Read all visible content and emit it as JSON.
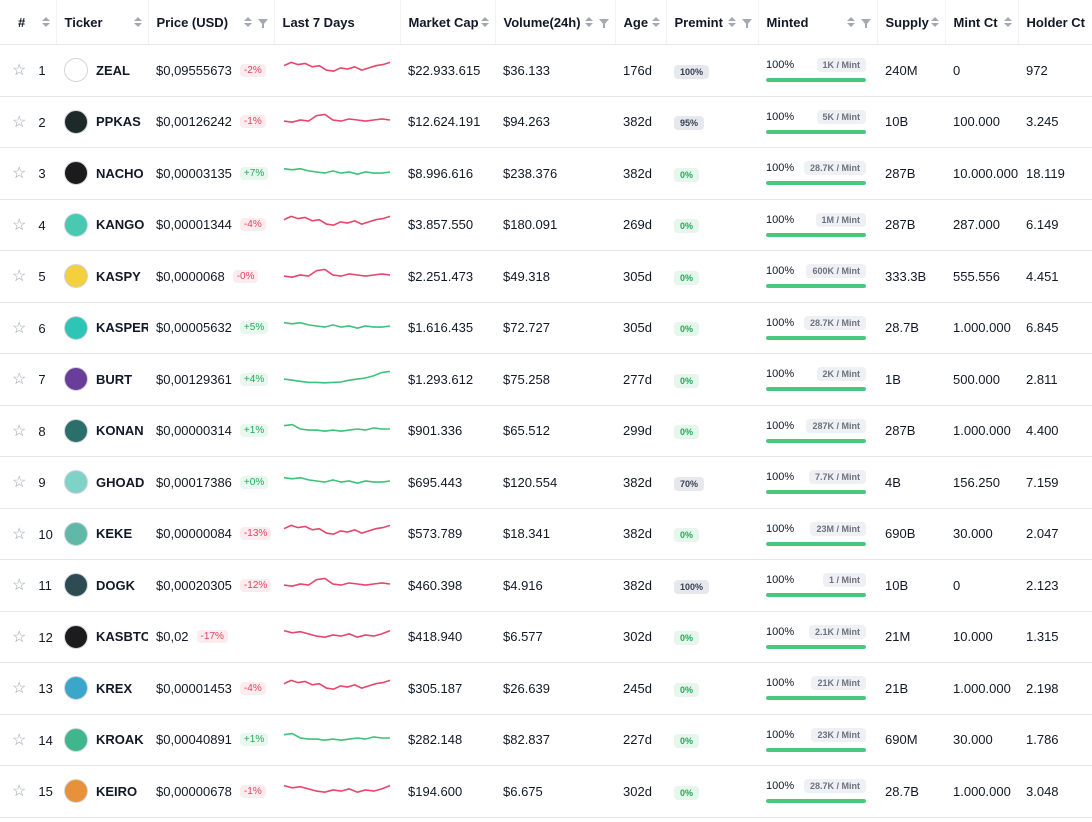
{
  "columns": {
    "rank": "#",
    "ticker": "Ticker",
    "price": "Price (USD)",
    "chart": "Last 7 Days",
    "mcap": "Market Cap",
    "volume": "Volume(24h)",
    "age": "Age",
    "premint": "Premint",
    "minted": "Minted",
    "supply": "Supply",
    "mintct": "Mint Ct",
    "holders": "Holder Ct"
  },
  "colors": {
    "positive": "#3cc27a",
    "negative": "#e6466a",
    "minted_fill": "#49c77d"
  },
  "rows": [
    {
      "rank": "1",
      "ticker": "ZEAL",
      "price": "$0,09555673",
      "change": "-2%",
      "dir": "neg",
      "mcap": "$22.933.615",
      "volume": "$36.133",
      "age": "176d",
      "premint": "100%",
      "minted_pct": "100%",
      "per_mint": "1K / Mint",
      "supply": "240M",
      "mintct": "0",
      "holders": "972",
      "logo_color": "#ffffff",
      "icon": "zeal-logo-icon"
    },
    {
      "rank": "2",
      "ticker": "PPKAS",
      "price": "$0,00126242",
      "change": "-1%",
      "dir": "neg",
      "mcap": "$12.624.191",
      "volume": "$94.263",
      "age": "382d",
      "premint": "95%",
      "minted_pct": "100%",
      "per_mint": "5K / Mint",
      "supply": "10B",
      "mintct": "100.000",
      "holders": "3.245",
      "logo_color": "#1e2a2a",
      "icon": "ppkas-logo-icon"
    },
    {
      "rank": "3",
      "ticker": "NACHO",
      "price": "$0,00003135",
      "change": "+7%",
      "dir": "pos",
      "mcap": "$8.996.616",
      "volume": "$238.376",
      "age": "382d",
      "premint": "0%",
      "minted_pct": "100%",
      "per_mint": "28.7K / Mint",
      "supply": "287B",
      "mintct": "10.000.000",
      "holders": "18.119",
      "logo_color": "#1b1b1b",
      "icon": "nacho-cat-icon"
    },
    {
      "rank": "4",
      "ticker": "KANGO",
      "price": "$0,00001344",
      "change": "-4%",
      "dir": "neg",
      "mcap": "$3.857.550",
      "volume": "$180.091",
      "age": "269d",
      "premint": "0%",
      "minted_pct": "100%",
      "per_mint": "1M / Mint",
      "supply": "287B",
      "mintct": "287.000",
      "holders": "6.149",
      "logo_color": "#48c9b0",
      "icon": "kango-logo-icon"
    },
    {
      "rank": "5",
      "ticker": "KASPY",
      "price": "$0,0000068",
      "change": "-0%",
      "dir": "neg",
      "mcap": "$2.251.473",
      "volume": "$49.318",
      "age": "305d",
      "premint": "0%",
      "minted_pct": "100%",
      "per_mint": "600K / Mint",
      "supply": "333.3B",
      "mintct": "555.556",
      "holders": "4.451",
      "logo_color": "#f4d03f",
      "icon": "kaspy-logo-icon"
    },
    {
      "rank": "6",
      "ticker": "KASPER",
      "price": "$0,00005632",
      "change": "+5%",
      "dir": "pos",
      "mcap": "$1.616.435",
      "volume": "$72.727",
      "age": "305d",
      "premint": "0%",
      "minted_pct": "100%",
      "per_mint": "28.7K / Mint",
      "supply": "28.7B",
      "mintct": "1.000.000",
      "holders": "6.845",
      "logo_color": "#2ec4b6",
      "icon": "kasper-ghost-icon"
    },
    {
      "rank": "7",
      "ticker": "BURT",
      "price": "$0,00129361",
      "change": "+4%",
      "dir": "pos",
      "mcap": "$1.293.612",
      "volume": "$75.258",
      "age": "277d",
      "premint": "0%",
      "minted_pct": "100%",
      "per_mint": "2K / Mint",
      "supply": "1B",
      "mintct": "500.000",
      "holders": "2.811",
      "logo_color": "#6a3d9a",
      "icon": "burt-logo-icon"
    },
    {
      "rank": "8",
      "ticker": "KONAN",
      "price": "$0,00000314",
      "change": "+1%",
      "dir": "pos",
      "mcap": "$901.336",
      "volume": "$65.512",
      "age": "299d",
      "premint": "0%",
      "minted_pct": "100%",
      "per_mint": "287K / Mint",
      "supply": "287B",
      "mintct": "1.000.000",
      "holders": "4.400",
      "logo_color": "#2b6f6a",
      "icon": "konan-logo-icon"
    },
    {
      "rank": "9",
      "ticker": "GHOAD",
      "price": "$0,00017386",
      "change": "+0%",
      "dir": "pos",
      "mcap": "$695.443",
      "volume": "$120.554",
      "age": "382d",
      "premint": "70%",
      "minted_pct": "100%",
      "per_mint": "7.7K / Mint",
      "supply": "4B",
      "mintct": "156.250",
      "holders": "7.159",
      "logo_color": "#7fd3c6",
      "icon": "ghoad-logo-icon"
    },
    {
      "rank": "10",
      "ticker": "KEKE",
      "price": "$0,00000084",
      "change": "-13%",
      "dir": "neg",
      "mcap": "$573.789",
      "volume": "$18.341",
      "age": "382d",
      "premint": "0%",
      "minted_pct": "100%",
      "per_mint": "23M / Mint",
      "supply": "690B",
      "mintct": "30.000",
      "holders": "2.047",
      "logo_color": "#5fb8a8",
      "icon": "keke-logo-icon"
    },
    {
      "rank": "11",
      "ticker": "DOGK",
      "price": "$0,00020305",
      "change": "-12%",
      "dir": "neg",
      "mcap": "$460.398",
      "volume": "$4.916",
      "age": "382d",
      "premint": "100%",
      "minted_pct": "100%",
      "per_mint": "1 / Mint",
      "supply": "10B",
      "mintct": "0",
      "holders": "2.123",
      "logo_color": "#2e4a52",
      "icon": "dogk-logo-icon"
    },
    {
      "rank": "12",
      "ticker": "KASBTC",
      "price": "$0,02",
      "change": "-17%",
      "dir": "neg",
      "mcap": "$418.940",
      "volume": "$6.577",
      "age": "302d",
      "premint": "0%",
      "minted_pct": "100%",
      "per_mint": "2.1K / Mint",
      "supply": "21M",
      "mintct": "10.000",
      "holders": "1.315",
      "logo_color": "#1c1c1c",
      "icon": "kasbtc-logo-icon"
    },
    {
      "rank": "13",
      "ticker": "KREX",
      "price": "$0,00001453",
      "change": "-4%",
      "dir": "neg",
      "mcap": "$305.187",
      "volume": "$26.639",
      "age": "245d",
      "premint": "0%",
      "minted_pct": "100%",
      "per_mint": "21K / Mint",
      "supply": "21B",
      "mintct": "1.000.000",
      "holders": "2.198",
      "logo_color": "#3aa6c9",
      "icon": "krex-logo-icon"
    },
    {
      "rank": "14",
      "ticker": "KROAK",
      "price": "$0,00040891",
      "change": "+1%",
      "dir": "pos",
      "mcap": "$282.148",
      "volume": "$82.837",
      "age": "227d",
      "premint": "0%",
      "minted_pct": "100%",
      "per_mint": "23K / Mint",
      "supply": "690M",
      "mintct": "30.000",
      "holders": "1.786",
      "logo_color": "#3fb68b",
      "icon": "kroak-frog-icon"
    },
    {
      "rank": "15",
      "ticker": "KEIRO",
      "price": "$0,00000678",
      "change": "-1%",
      "dir": "neg",
      "mcap": "$194.600",
      "volume": "$6.675",
      "age": "302d",
      "premint": "0%",
      "minted_pct": "100%",
      "per_mint": "28.7K / Mint",
      "supply": "28.7B",
      "mintct": "1.000.000",
      "holders": "3.048",
      "logo_color": "#e8913a",
      "icon": "keiro-logo-icon"
    }
  ]
}
